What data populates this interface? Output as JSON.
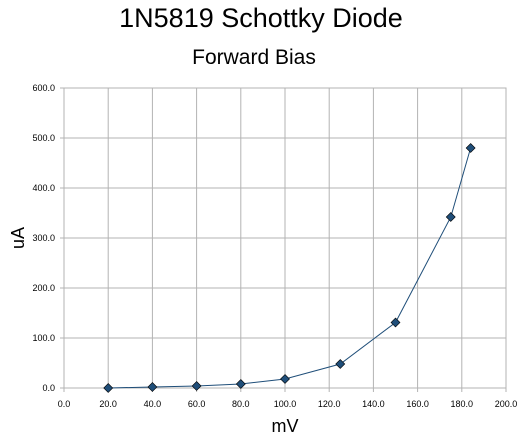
{
  "chart_data": {
    "type": "line",
    "title": "1N5819 Schottky Diode",
    "subtitle": "Forward Bias",
    "xlabel": "mV",
    "ylabel": "uA",
    "xlim": [
      0,
      200
    ],
    "ylim": [
      0,
      600
    ],
    "x_ticks": [
      "0.0",
      "20.0",
      "40.0",
      "60.0",
      "80.0",
      "100.0",
      "120.0",
      "140.0",
      "160.0",
      "180.0",
      "200.0"
    ],
    "y_ticks": [
      "0.0",
      "100.0",
      "200.0",
      "300.0",
      "400.0",
      "500.0",
      "600.0"
    ],
    "grid": true,
    "legend": "none",
    "series": [
      {
        "marker": "diamond",
        "line_color": "#1f4e79",
        "marker_color": "#1f4e79",
        "x": [
          20,
          40,
          60,
          80,
          100,
          125,
          150,
          175,
          184
        ],
        "y": [
          0,
          2,
          4,
          8,
          18,
          48,
          131,
          342,
          480
        ]
      }
    ]
  }
}
